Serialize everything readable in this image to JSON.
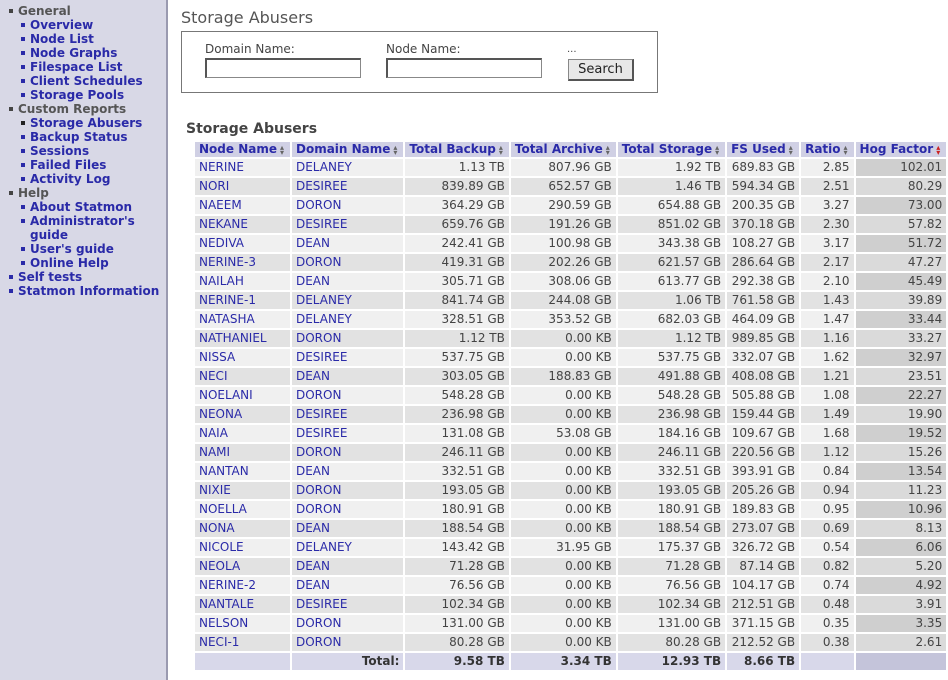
{
  "sidebar": {
    "sections": [
      {
        "heading": "General",
        "items": [
          "Overview",
          "Node List",
          "Node Graphs",
          "Filespace List",
          "Client Schedules",
          "Storage Pools"
        ]
      },
      {
        "heading": "Custom Reports",
        "items": [
          "Storage Abusers",
          "Backup Status",
          "Sessions",
          "Failed Files",
          "Activity Log"
        ]
      },
      {
        "heading": "Help",
        "items": [
          "About Statmon",
          "Administrator's guide",
          "User's guide",
          "Online Help"
        ]
      }
    ],
    "links": [
      "Self tests",
      "Statmon Information"
    ]
  },
  "page": {
    "title": "Storage Abusers"
  },
  "search": {
    "domain_label": "Domain Name:",
    "node_label": "Node Name:",
    "domain_value": "",
    "node_value": "",
    "ellipsis": "...",
    "button_label": "Search"
  },
  "table": {
    "title": "Storage Abusers",
    "columns": [
      "Node Name",
      "Domain Name",
      "Total Backup",
      "Total Archive",
      "Total Storage",
      "FS Used",
      "Ratio",
      "Hog Factor"
    ],
    "sort_icons": [
      "up-down",
      "up-down",
      "up-down",
      "up-down",
      "up-down",
      "up-down",
      "up-down",
      "sorted-desc"
    ],
    "rows": [
      [
        "NERINE",
        "DELANEY",
        "1.13 TB",
        "807.96 GB",
        "1.92 TB",
        "689.83 GB",
        "2.85",
        "102.01"
      ],
      [
        "NORI",
        "DESIREE",
        "839.89 GB",
        "652.57 GB",
        "1.46 TB",
        "594.34 GB",
        "2.51",
        "80.29"
      ],
      [
        "NAEEM",
        "DORON",
        "364.29 GB",
        "290.59 GB",
        "654.88 GB",
        "200.35 GB",
        "3.27",
        "73.00"
      ],
      [
        "NEKANE",
        "DESIREE",
        "659.76 GB",
        "191.26 GB",
        "851.02 GB",
        "370.18 GB",
        "2.30",
        "57.82"
      ],
      [
        "NEDIVA",
        "DEAN",
        "242.41 GB",
        "100.98 GB",
        "343.38 GB",
        "108.27 GB",
        "3.17",
        "51.72"
      ],
      [
        "NERINE-3",
        "DORON",
        "419.31 GB",
        "202.26 GB",
        "621.57 GB",
        "286.64 GB",
        "2.17",
        "47.27"
      ],
      [
        "NAILAH",
        "DEAN",
        "305.71 GB",
        "308.06 GB",
        "613.77 GB",
        "292.38 GB",
        "2.10",
        "45.49"
      ],
      [
        "NERINE-1",
        "DELANEY",
        "841.74 GB",
        "244.08 GB",
        "1.06 TB",
        "761.58 GB",
        "1.43",
        "39.89"
      ],
      [
        "NATASHA",
        "DELANEY",
        "328.51 GB",
        "353.52 GB",
        "682.03 GB",
        "464.09 GB",
        "1.47",
        "33.44"
      ],
      [
        "NATHANIEL",
        "DORON",
        "1.12 TB",
        "0.00 KB",
        "1.12 TB",
        "989.85 GB",
        "1.16",
        "33.27"
      ],
      [
        "NISSA",
        "DESIREE",
        "537.75 GB",
        "0.00 KB",
        "537.75 GB",
        "332.07 GB",
        "1.62",
        "32.97"
      ],
      [
        "NECI",
        "DEAN",
        "303.05 GB",
        "188.83 GB",
        "491.88 GB",
        "408.08 GB",
        "1.21",
        "23.51"
      ],
      [
        "NOELANI",
        "DORON",
        "548.28 GB",
        "0.00 KB",
        "548.28 GB",
        "505.88 GB",
        "1.08",
        "22.27"
      ],
      [
        "NEONA",
        "DESIREE",
        "236.98 GB",
        "0.00 KB",
        "236.98 GB",
        "159.44 GB",
        "1.49",
        "19.90"
      ],
      [
        "NAIA",
        "DESIREE",
        "131.08 GB",
        "53.08 GB",
        "184.16 GB",
        "109.67 GB",
        "1.68",
        "19.52"
      ],
      [
        "NAMI",
        "DORON",
        "246.11 GB",
        "0.00 KB",
        "246.11 GB",
        "220.56 GB",
        "1.12",
        "15.26"
      ],
      [
        "NANTAN",
        "DEAN",
        "332.51 GB",
        "0.00 KB",
        "332.51 GB",
        "393.91 GB",
        "0.84",
        "13.54"
      ],
      [
        "NIXIE",
        "DORON",
        "193.05 GB",
        "0.00 KB",
        "193.05 GB",
        "205.26 GB",
        "0.94",
        "11.23"
      ],
      [
        "NOELLA",
        "DORON",
        "180.91 GB",
        "0.00 KB",
        "180.91 GB",
        "189.83 GB",
        "0.95",
        "10.96"
      ],
      [
        "NONA",
        "DEAN",
        "188.54 GB",
        "0.00 KB",
        "188.54 GB",
        "273.07 GB",
        "0.69",
        "8.13"
      ],
      [
        "NICOLE",
        "DELANEY",
        "143.42 GB",
        "31.95 GB",
        "175.37 GB",
        "326.72 GB",
        "0.54",
        "6.06"
      ],
      [
        "NEOLA",
        "DEAN",
        "71.28 GB",
        "0.00 KB",
        "71.28 GB",
        "87.14 GB",
        "0.82",
        "5.20"
      ],
      [
        "NERINE-2",
        "DEAN",
        "76.56 GB",
        "0.00 KB",
        "76.56 GB",
        "104.17 GB",
        "0.74",
        "4.92"
      ],
      [
        "NANTALE",
        "DESIREE",
        "102.34 GB",
        "0.00 KB",
        "102.34 GB",
        "212.51 GB",
        "0.48",
        "3.91"
      ],
      [
        "NELSON",
        "DORON",
        "131.00 GB",
        "0.00 KB",
        "131.00 GB",
        "371.15 GB",
        "0.35",
        "3.35"
      ],
      [
        "NECI-1",
        "DORON",
        "80.28 GB",
        "0.00 KB",
        "80.28 GB",
        "212.52 GB",
        "0.38",
        "2.61"
      ]
    ],
    "totals": {
      "label": "Total:",
      "backup": "9.58 TB",
      "archive": "3.34 TB",
      "storage": "12.93 TB",
      "fs_used": "8.66 TB"
    }
  }
}
